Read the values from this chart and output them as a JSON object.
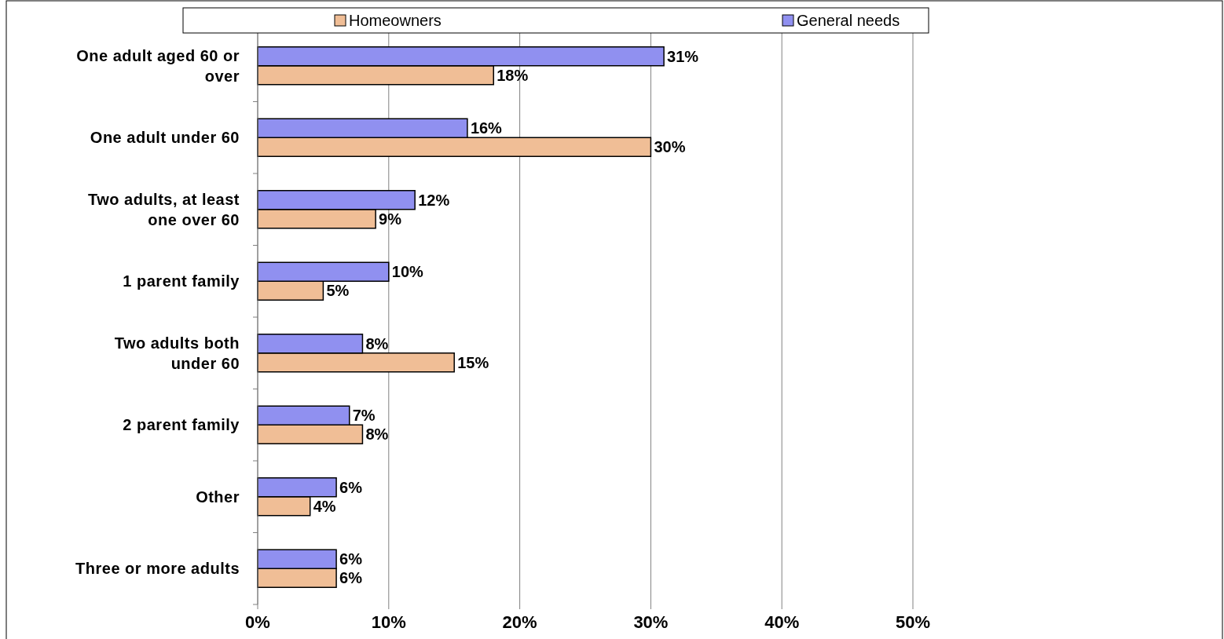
{
  "chart_data": {
    "type": "bar",
    "orientation": "horizontal",
    "categories": [
      "One adult aged 60 or over",
      "One adult under 60",
      "Two adults, at least one over 60",
      "1 parent family",
      "Two adults both under 60",
      "2 parent family",
      "Other",
      "Three or more adults"
    ],
    "series": [
      {
        "name": "Homeowners",
        "color": "#f0be96",
        "values": [
          18,
          30,
          9,
          5,
          15,
          8,
          4,
          6
        ],
        "value_labels": [
          "18%",
          "30%",
          "9%",
          "5%",
          "15%",
          "8%",
          "4%",
          "6%"
        ]
      },
      {
        "name": "General needs",
        "color": "#9090f0",
        "values": [
          31,
          16,
          12,
          10,
          8,
          7,
          6,
          6
        ],
        "value_labels": [
          "31%",
          "16%",
          "12%",
          "10%",
          "8%",
          "7%",
          "6%",
          "6%"
        ]
      }
    ],
    "xlim": [
      0,
      50
    ],
    "xticks": [
      {
        "value": 0,
        "label": "0%"
      },
      {
        "value": 10,
        "label": "10%"
      },
      {
        "value": 20,
        "label": "20%"
      },
      {
        "value": 30,
        "label": "30%"
      },
      {
        "value": 40,
        "label": "40%"
      },
      {
        "value": 50,
        "label": "50%"
      }
    ],
    "grid": "x",
    "legend": "top"
  }
}
